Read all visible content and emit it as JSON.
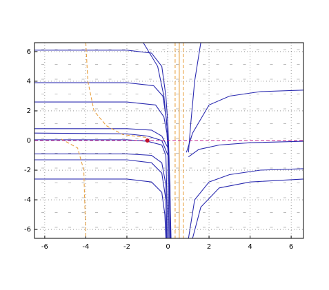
{
  "chart_data": {
    "type": "line",
    "xlim": [
      -6.5,
      6.6
    ],
    "ylim": [
      -6.6,
      6.6
    ],
    "xticks": [
      -6,
      -4,
      -2,
      0,
      2,
      4,
      6
    ],
    "yticks": [
      -6,
      -4,
      -2,
      0,
      2,
      4,
      6
    ],
    "grid": true,
    "series": [
      {
        "color": "#2b2bb0",
        "style": "solid",
        "x": [
          -6.5,
          -2,
          -0.8,
          -0.3,
          -0.1,
          0,
          0.05,
          0.1
        ],
        "values": [
          6.1,
          6.1,
          5.9,
          5.0,
          3,
          1,
          -1,
          -6.6
        ]
      },
      {
        "color": "#2b2bb0",
        "style": "solid",
        "x": [
          -6.5,
          -2,
          -0.7,
          -0.25,
          -0.08,
          0.05,
          0.15
        ],
        "values": [
          3.9,
          3.9,
          3.7,
          3.0,
          1.5,
          -1,
          -6.6
        ]
      },
      {
        "color": "#2b2bb0",
        "style": "solid",
        "x": [
          -6.5,
          -2,
          -0.6,
          -0.2,
          -0.05,
          0.05,
          0.1
        ],
        "values": [
          2.6,
          2.6,
          2.4,
          1.6,
          0.5,
          -2,
          -6.6
        ]
      },
      {
        "color": "#2b2bb0",
        "style": "solid",
        "x": [
          -6.5,
          -2,
          -0.8,
          -0.3,
          0,
          0.1,
          0.12
        ],
        "values": [
          0.8,
          0.8,
          0.7,
          0.3,
          -0.5,
          -3,
          -6.6
        ]
      },
      {
        "color": "#2b2bb0",
        "style": "solid",
        "x": [
          -6.5,
          -2,
          -1,
          -0.3,
          0,
          0.05
        ],
        "values": [
          0.5,
          0.45,
          0.3,
          0,
          -1,
          -6.6
        ]
      },
      {
        "color": "#2b2bb0",
        "style": "solid",
        "x": [
          -6.5,
          -2,
          -1,
          -0.3,
          -0.1,
          0
        ],
        "values": [
          0.05,
          0.05,
          -0.05,
          -0.3,
          -1,
          -6.6
        ]
      },
      {
        "color": "#2b2bb0",
        "style": "solid",
        "x": [
          -6.5,
          -2,
          -0.8,
          -0.3,
          -0.1,
          -0.05
        ],
        "values": [
          -0.9,
          -0.9,
          -1.0,
          -1.5,
          -3,
          -6.6
        ]
      },
      {
        "color": "#2b2bb0",
        "style": "solid",
        "x": [
          -6.5,
          -2,
          -0.8,
          -0.3,
          -0.1,
          -0.08
        ],
        "values": [
          -1.3,
          -1.3,
          -1.5,
          -2.2,
          -4,
          -6.6
        ]
      },
      {
        "color": "#2b2bb0",
        "style": "solid",
        "x": [
          -6.5,
          -2,
          -0.8,
          -0.3,
          -0.15,
          -0.1
        ],
        "values": [
          -2.6,
          -2.6,
          -2.8,
          -3.5,
          -5,
          -6.6
        ]
      },
      {
        "color": "#2b2bb0",
        "style": "solid",
        "x": [
          -1.2,
          -0.5,
          -0.2,
          -0.05
        ],
        "values": [
          6.6,
          5,
          3,
          1
        ]
      },
      {
        "color": "#2b2bb0",
        "style": "solid",
        "x": [
          1.0,
          1.1,
          1.3,
          1.6
        ],
        "values": [
          -0.8,
          1,
          4,
          6.6
        ]
      },
      {
        "color": "#2b2bb0",
        "style": "solid",
        "x": [
          0.9,
          1.2,
          2,
          3,
          4.5,
          6.6
        ],
        "values": [
          -0.8,
          0.5,
          2.4,
          3.0,
          3.3,
          3.4
        ]
      },
      {
        "color": "#2b2bb0",
        "style": "solid",
        "x": [
          1.0,
          1.5,
          2.5,
          4,
          6.6
        ],
        "values": [
          -1.1,
          -0.6,
          -0.3,
          -0.15,
          -0.05
        ]
      },
      {
        "color": "#2b2bb0",
        "style": "solid",
        "x": [
          1.0,
          1.3,
          2,
          3,
          4.5,
          6.6
        ],
        "values": [
          -6.6,
          -4,
          -2.8,
          -2.3,
          -2.0,
          -1.9
        ]
      },
      {
        "color": "#2b2bb0",
        "style": "solid",
        "x": [
          1.2,
          1.6,
          2.5,
          4,
          6.6
        ],
        "values": [
          -6.6,
          -4.5,
          -3.2,
          -2.8,
          -2.6
        ]
      },
      {
        "color": "#e8a040",
        "style": "dashed",
        "x": [
          -4,
          -3.9,
          -3.6,
          -3.0,
          -2.2,
          -1
        ],
        "values": [
          6.6,
          4,
          2,
          1.0,
          0.4,
          0.2
        ]
      },
      {
        "color": "#e8a040",
        "style": "dashed",
        "x": [
          -5.2,
          -4.4,
          -4.1,
          -4.0
        ],
        "values": [
          0.1,
          -0.5,
          -2,
          -6.6
        ]
      },
      {
        "color": "#e8a040",
        "style": "dashed",
        "x": [
          0.35,
          0.35
        ],
        "values": [
          6.6,
          -6.6
        ]
      },
      {
        "color": "#e8a040",
        "style": "solid",
        "x": [
          0.55,
          0.55
        ],
        "values": [
          6.6,
          -6.6
        ]
      },
      {
        "color": "#e8a040",
        "style": "dashed",
        "x": [
          0.75,
          0.75
        ],
        "values": [
          6.6,
          -6.6
        ]
      },
      {
        "color": "#c0208a",
        "style": "dashed",
        "x": [
          -6.5,
          6.6
        ],
        "values": [
          0,
          0
        ]
      },
      {
        "color": "#c0102a",
        "style": "point",
        "x": [
          -1
        ],
        "values": [
          0
        ]
      }
    ]
  }
}
